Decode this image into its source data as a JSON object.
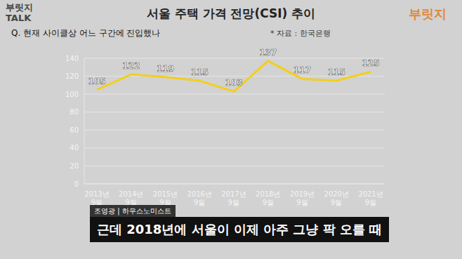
{
  "chart_data": {
    "type": "line",
    "title": "서울 주택 가격 전망(CSI) 추이",
    "annotations": [
      "* 자료 : 한국은행"
    ],
    "categories": [
      "2013년 9월",
      "2014년 9월",
      "2015년 9월",
      "2016년 9월",
      "2017년 9월",
      "2018년 9월",
      "2019년 9월",
      "2020년 9월",
      "2021년 9월"
    ],
    "values": [
      105,
      122,
      119,
      115,
      103,
      137,
      117,
      115,
      125
    ],
    "color": "#f2cf1d",
    "ylim": [
      0,
      140
    ],
    "yticks": [
      0,
      20,
      40,
      60,
      80,
      100,
      120,
      140
    ],
    "grid": true,
    "data_labels": true
  },
  "overlay": {
    "logo": "부릿지",
    "logo_sub": "TALK",
    "logo_right": "부릿지",
    "question": "Q. 현재 사이클상 어느 구간에 진입했나",
    "speaker": "조영광 | 하우스노미스트",
    "caption": "근데 2018년에 서울이 이제 아주 그냥 팍 오를 때"
  }
}
